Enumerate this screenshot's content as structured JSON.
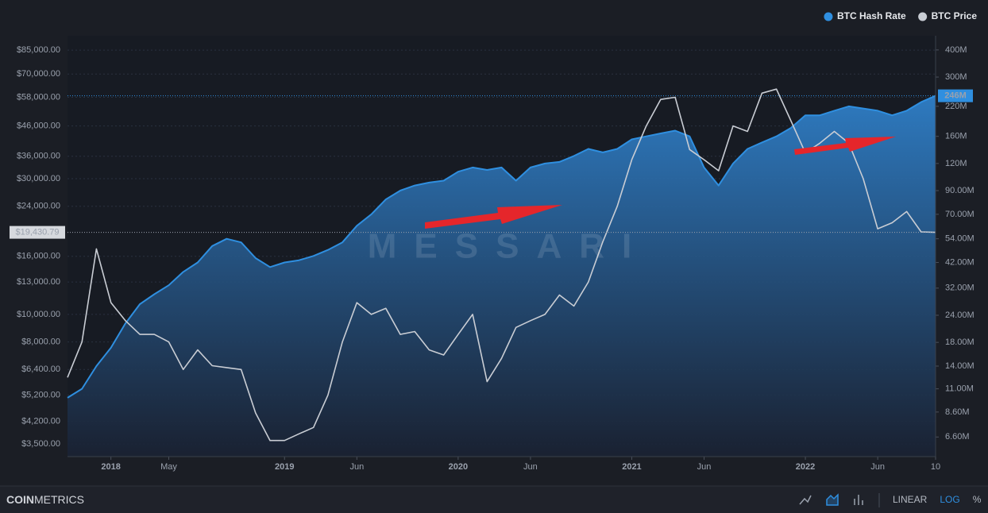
{
  "chart_data": {
    "type": "line",
    "x": [
      "2017-10",
      "2017-11",
      "2017-12",
      "2018-01",
      "2018-02",
      "2018-03",
      "2018-04",
      "2018-05",
      "2018-06",
      "2018-07",
      "2018-08",
      "2018-09",
      "2018-10",
      "2018-11",
      "2018-12",
      "2019-01",
      "2019-02",
      "2019-03",
      "2019-04",
      "2019-05",
      "2019-06",
      "2019-07",
      "2019-08",
      "2019-09",
      "2019-10",
      "2019-11",
      "2019-12",
      "2020-01",
      "2020-02",
      "2020-03",
      "2020-04",
      "2020-05",
      "2020-06",
      "2020-07",
      "2020-08",
      "2020-09",
      "2020-10",
      "2020-11",
      "2020-12",
      "2021-01",
      "2021-02",
      "2021-03",
      "2021-04",
      "2021-05",
      "2021-06",
      "2021-07",
      "2021-08",
      "2021-09",
      "2021-10",
      "2021-11",
      "2021-12",
      "2022-01",
      "2022-02",
      "2022-03",
      "2022-04",
      "2022-05",
      "2022-06",
      "2022-07",
      "2022-08",
      "2022-09",
      "2022-10"
    ],
    "xlim": [
      "2017-10",
      "2022-10"
    ],
    "xticks": [
      {
        "value": "2018-01",
        "label": "2018"
      },
      {
        "value": "2018-05",
        "label": "May"
      },
      {
        "value": "2019-01",
        "label": "2019"
      },
      {
        "value": "2019-06",
        "label": "Jun"
      },
      {
        "value": "2020-01",
        "label": "2020"
      },
      {
        "value": "2020-06",
        "label": "Jun"
      },
      {
        "value": "2021-01",
        "label": "2021"
      },
      {
        "value": "2021-06",
        "label": "Jun"
      },
      {
        "value": "2022-01",
        "label": "2022"
      },
      {
        "value": "2022-06",
        "label": "Jun"
      },
      {
        "value": "2022-10",
        "label": "10"
      }
    ],
    "ylog": true,
    "ylim": [
      3160,
      95500
    ],
    "yticks": [
      {
        "value": 85000,
        "label": "$85,000.00"
      },
      {
        "value": 70000,
        "label": "$70,000.00"
      },
      {
        "value": 58000,
        "label": "$58,000.00"
      },
      {
        "value": 46000,
        "label": "$46,000.00"
      },
      {
        "value": 36000,
        "label": "$36,000.00"
      },
      {
        "value": 30000,
        "label": "$30,000.00"
      },
      {
        "value": 24000,
        "label": "$24,000.00"
      },
      {
        "value": 16000,
        "label": "$16,000.00"
      },
      {
        "value": 13000,
        "label": "$13,000.00"
      },
      {
        "value": 10000,
        "label": "$10,000.00"
      },
      {
        "value": 8000,
        "label": "$8,000.00"
      },
      {
        "value": 6400,
        "label": "$6,400.00"
      },
      {
        "value": 5200,
        "label": "$5,200.00"
      },
      {
        "value": 4200,
        "label": "$4,200.00"
      },
      {
        "value": 3500,
        "label": "$3,500.00"
      }
    ],
    "y2log": true,
    "y2lim": [
      5.36,
      465
    ],
    "y2ticks": [
      {
        "value": 400,
        "label": "400M"
      },
      {
        "value": 300,
        "label": "300M"
      },
      {
        "value": 220,
        "label": "220M"
      },
      {
        "value": 160,
        "label": "160M"
      },
      {
        "value": 120,
        "label": "120M"
      },
      {
        "value": 90,
        "label": "90.00M"
      },
      {
        "value": 70,
        "label": "70.00M"
      },
      {
        "value": 54,
        "label": "54.00M"
      },
      {
        "value": 42,
        "label": "42.00M"
      },
      {
        "value": 32,
        "label": "32.00M"
      },
      {
        "value": 24,
        "label": "24.00M"
      },
      {
        "value": 18,
        "label": "18.00M"
      },
      {
        "value": 14,
        "label": "14.00M"
      },
      {
        "value": 11,
        "label": "11.00M"
      },
      {
        "value": 8.6,
        "label": "8.60M"
      },
      {
        "value": 6.6,
        "label": "6.60M"
      }
    ],
    "grid": true,
    "legend": "top-right",
    "series": [
      {
        "name": "BTC Hash Rate",
        "color": "#2f8fe0",
        "axis": "y2",
        "area": true,
        "last_label": "246M",
        "values": [
          10,
          11,
          14,
          17,
          22,
          27,
          30,
          33,
          38,
          42,
          50,
          54,
          52,
          44,
          40,
          42,
          43,
          45,
          48,
          52,
          62,
          70,
          82,
          90,
          95,
          98,
          100,
          110,
          115,
          112,
          115,
          100,
          115,
          120,
          122,
          130,
          140,
          135,
          140,
          155,
          160,
          165,
          170,
          160,
          115,
          95,
          120,
          140,
          150,
          160,
          175,
          200,
          200,
          210,
          220,
          215,
          210,
          200,
          210,
          230,
          246
        ]
      },
      {
        "name": "BTC Price",
        "color": "#c9cdd4",
        "last_label": "$19,430.79",
        "values": [
          6000,
          8000,
          17000,
          11000,
          9500,
          8500,
          8500,
          8000,
          6400,
          7500,
          6600,
          6500,
          6400,
          4500,
          3600,
          3600,
          3800,
          4000,
          5200,
          8000,
          11000,
          10000,
          10500,
          8500,
          8700,
          7500,
          7200,
          8500,
          10000,
          5800,
          7000,
          9000,
          9500,
          10000,
          11700,
          10700,
          13000,
          18000,
          24000,
          35000,
          46000,
          57000,
          58000,
          38000,
          35000,
          32000,
          46000,
          44000,
          60000,
          62000,
          48000,
          37000,
          40000,
          44000,
          40000,
          30000,
          20000,
          21000,
          23000,
          19500,
          19430.79
        ]
      }
    ],
    "watermark": "MESSARI"
  },
  "footer": {
    "brand_bold": "COIN",
    "brand": "METRICS",
    "modes": [
      "LINEAR",
      "LOG",
      "%"
    ],
    "active_mode": 1
  }
}
